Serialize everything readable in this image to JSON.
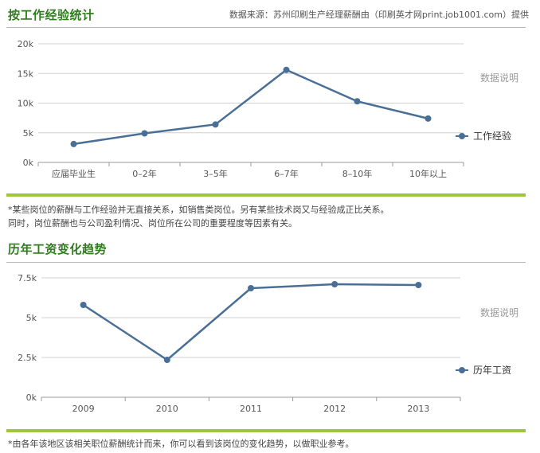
{
  "source_note": "数据来源：苏州印刷生产经理薪酬由（印刷英才网print.job1001.com）提供",
  "section1": {
    "title": "按工作经验统计",
    "note_line1": "*某些岗位的薪酬与工作经验并无直接关系，如销售类岗位。另有某些技术岗又与经验成正比关系。",
    "note_line2": "同时，岗位薪酬也与公司盈利情况、岗位所在公司的重要程度等因素有关。",
    "explain_label": "数据说明"
  },
  "section2": {
    "title": "历年工资变化趋势",
    "note_line1": "*由各年该地区该相关职位薪酬统计而来，你可以看到该岗位的变化趋势，以做职业参考。",
    "explain_label": "数据说明"
  },
  "colors": {
    "line": "#4a6f96",
    "title": "#2e7d1c",
    "accent_rule": "#9cc63b",
    "grid": "#d0d0d0"
  },
  "chart_data": [
    {
      "type": "line",
      "categories": [
        "应届毕业生",
        "0–2年",
        "3–5年",
        "6–7年",
        "8–10年",
        "10年以上"
      ],
      "series": [
        {
          "name": "工作经验",
          "values": [
            3100,
            4900,
            6400,
            15600,
            10300,
            7400
          ]
        }
      ],
      "yticks": [
        "0k",
        "5k",
        "10k",
        "15k",
        "20k"
      ],
      "ylim": [
        0,
        20000
      ],
      "grid": true,
      "legend": "right"
    },
    {
      "type": "line",
      "categories": [
        "2009",
        "2010",
        "2011",
        "2012",
        "2013"
      ],
      "series": [
        {
          "name": "历年工资",
          "values": [
            5800,
            2350,
            6850,
            7100,
            7050
          ]
        }
      ],
      "yticks": [
        "0k",
        "2.5k",
        "5k",
        "7.5k"
      ],
      "ylim": [
        0,
        7500
      ],
      "grid": true,
      "legend": "right"
    }
  ]
}
